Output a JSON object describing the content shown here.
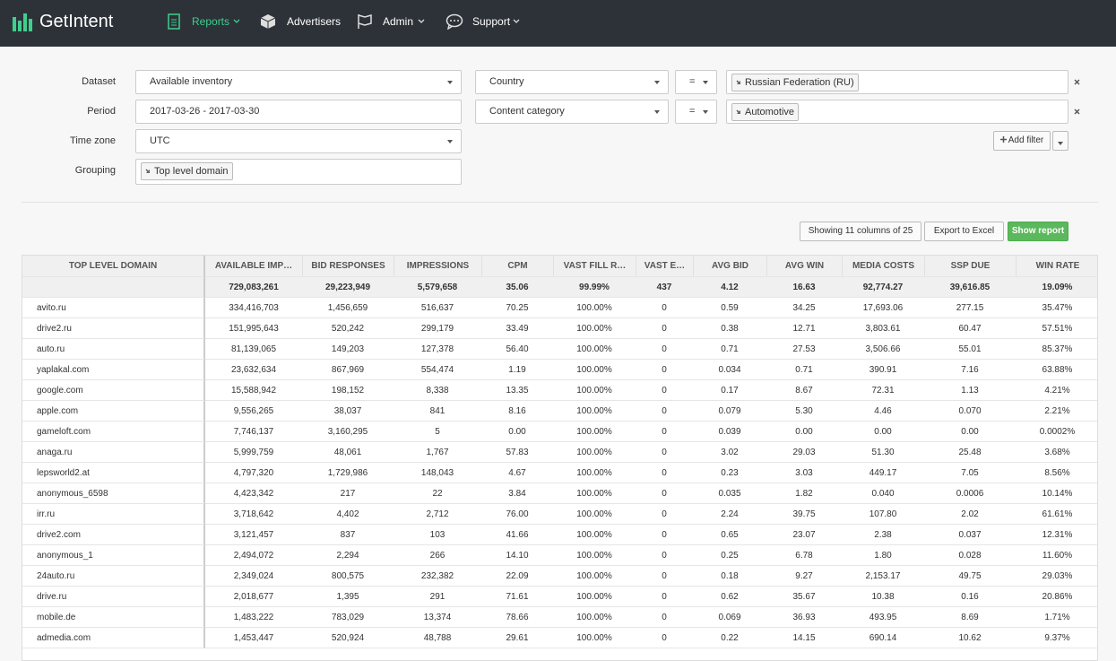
{
  "nav": {
    "brand": "GetIntent",
    "items": [
      "Reports",
      "Advertisers",
      "Admin",
      "Support"
    ]
  },
  "form": {
    "fields": [
      {
        "label": "Dataset",
        "value": "Available inventory"
      },
      {
        "label": "Period",
        "value": "2017-03-26 - 2017-03-30"
      },
      {
        "label": "Time zone",
        "value": "UTC"
      }
    ],
    "grouping": {
      "label": "Grouping",
      "tag": "Top level domain"
    },
    "filters": [
      {
        "field": "Country",
        "operator": "=",
        "value": "Russian Federation (RU)"
      },
      {
        "field": "Content category",
        "operator": "=",
        "value": "Automotive"
      }
    ],
    "add_filter": "Add filter"
  },
  "toolbar": {
    "columns": "Showing 11 columns of 25",
    "export": "Export to Excel",
    "show": "Show report"
  },
  "table": {
    "headers": [
      "TOP LEVEL DOMAIN",
      "AVAILABLE IMP…",
      "BID RESPONSES",
      "IMPRESSIONS",
      "CPM",
      "VAST FILL R…",
      "VAST E…",
      "AVG BID",
      "AVG WIN",
      "MEDIA COSTS",
      "SSP DUE",
      "WIN RATE"
    ],
    "totals": [
      "729,083,261",
      "29,223,949",
      "5,579,658",
      "35.06",
      "99.99%",
      "437",
      "4.12",
      "16.63",
      "92,774.27",
      "39,616.85",
      "19.09%"
    ],
    "rows": [
      [
        "avito.ru",
        "334,416,703",
        "1,456,659",
        "516,637",
        "70.25",
        "100.00%",
        "0",
        "0.59",
        "34.25",
        "17,693.06",
        "277.15",
        "35.47%"
      ],
      [
        "drive2.ru",
        "151,995,643",
        "520,242",
        "299,179",
        "33.49",
        "100.00%",
        "0",
        "0.38",
        "12.71",
        "3,803.61",
        "60.47",
        "57.51%"
      ],
      [
        "auto.ru",
        "81,139,065",
        "149,203",
        "127,378",
        "56.40",
        "100.00%",
        "0",
        "0.71",
        "27.53",
        "3,506.66",
        "55.01",
        "85.37%"
      ],
      [
        "yaplakal.com",
        "23,632,634",
        "867,969",
        "554,474",
        "1.19",
        "100.00%",
        "0",
        "0.034",
        "0.71",
        "390.91",
        "7.16",
        "63.88%"
      ],
      [
        "google.com",
        "15,588,942",
        "198,152",
        "8,338",
        "13.35",
        "100.00%",
        "0",
        "0.17",
        "8.67",
        "72.31",
        "1.13",
        "4.21%"
      ],
      [
        "apple.com",
        "9,556,265",
        "38,037",
        "841",
        "8.16",
        "100.00%",
        "0",
        "0.079",
        "5.30",
        "4.46",
        "0.070",
        "2.21%"
      ],
      [
        "gameloft.com",
        "7,746,137",
        "3,160,295",
        "5",
        "0.00",
        "100.00%",
        "0",
        "0.039",
        "0.00",
        "0.00",
        "0.00",
        "0.0002%"
      ],
      [
        "anaga.ru",
        "5,999,759",
        "48,061",
        "1,767",
        "57.83",
        "100.00%",
        "0",
        "3.02",
        "29.03",
        "51.30",
        "25.48",
        "3.68%"
      ],
      [
        "lepsworld2.at",
        "4,797,320",
        "1,729,986",
        "148,043",
        "4.67",
        "100.00%",
        "0",
        "0.23",
        "3.03",
        "449.17",
        "7.05",
        "8.56%"
      ],
      [
        "anonymous_6598",
        "4,423,342",
        "217",
        "22",
        "3.84",
        "100.00%",
        "0",
        "0.035",
        "1.82",
        "0.040",
        "0.0006",
        "10.14%"
      ],
      [
        "irr.ru",
        "3,718,642",
        "4,402",
        "2,712",
        "76.00",
        "100.00%",
        "0",
        "2.24",
        "39.75",
        "107.80",
        "2.02",
        "61.61%"
      ],
      [
        "drive2.com",
        "3,121,457",
        "837",
        "103",
        "41.66",
        "100.00%",
        "0",
        "0.65",
        "23.07",
        "2.38",
        "0.037",
        "12.31%"
      ],
      [
        "anonymous_1",
        "2,494,072",
        "2,294",
        "266",
        "14.10",
        "100.00%",
        "0",
        "0.25",
        "6.78",
        "1.80",
        "0.028",
        "11.60%"
      ],
      [
        "24auto.ru",
        "2,349,024",
        "800,575",
        "232,382",
        "22.09",
        "100.00%",
        "0",
        "0.18",
        "9.27",
        "2,153.17",
        "49.75",
        "29.03%"
      ],
      [
        "drive.ru",
        "2,018,677",
        "1,395",
        "291",
        "71.61",
        "100.00%",
        "0",
        "0.62",
        "35.67",
        "10.38",
        "0.16",
        "20.86%"
      ],
      [
        "mobile.de",
        "1,483,222",
        "783,029",
        "13,374",
        "78.66",
        "100.00%",
        "0",
        "0.069",
        "36.93",
        "493.95",
        "8.69",
        "1.71%"
      ],
      [
        "admedia.com",
        "1,453,447",
        "520,924",
        "48,788",
        "29.61",
        "100.00%",
        "0",
        "0.22",
        "14.15",
        "690.14",
        "10.62",
        "9.37%"
      ]
    ]
  }
}
